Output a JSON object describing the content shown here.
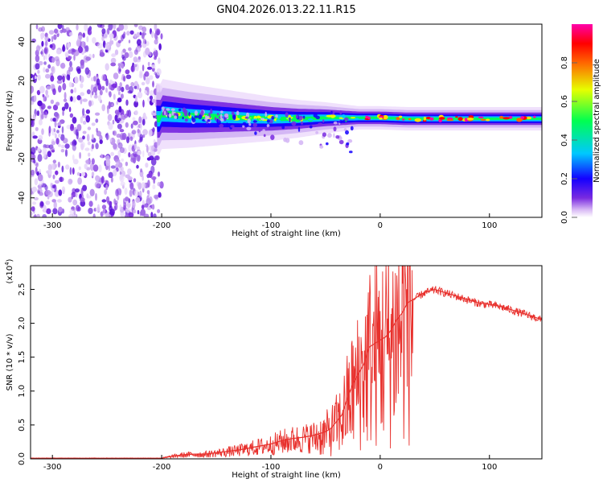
{
  "title": "GN04.2026.013.22.11.R15",
  "chart_data": [
    {
      "type": "heatmap",
      "xlabel": "Height of straight line (km)",
      "ylabel": "Frequency (Hz)",
      "xlim": [
        -320,
        148
      ],
      "ylim": [
        -50,
        49
      ],
      "xticks": [
        -300,
        -200,
        -100,
        0,
        100
      ],
      "yticks": [
        -40,
        -20,
        0,
        20,
        40
      ],
      "ridge": {
        "x": [
          -200,
          -175,
          -150,
          -125,
          -100,
          -75,
          -50,
          -25,
          0,
          25,
          50,
          75,
          100,
          148
        ],
        "y": [
          3,
          2,
          1.5,
          1,
          0.5,
          0.5,
          1,
          1,
          1,
          0.5,
          0.5,
          0.5,
          0.5,
          0.5
        ]
      },
      "noise_region_x": [
        -320,
        -200
      ],
      "colorbar": {
        "label": "Normalized spectral amplitude",
        "range": [
          0,
          1
        ],
        "ticks": [
          0.0,
          0.2,
          0.4,
          0.6,
          0.8
        ],
        "tick_labels": [
          "0.0",
          "0.2",
          "0.4",
          "0.6",
          "0.8"
        ],
        "colors": [
          "#ffffff",
          "#d8b8f5",
          "#7a2be0",
          "#1400ff",
          "#00c8ff",
          "#00ff50",
          "#e6ff00",
          "#ff6600",
          "#ff0000",
          "#ff00aa"
        ]
      }
    },
    {
      "type": "line",
      "xlabel": "Height of straight line (km)",
      "ylabel": "SNR (10 * v/v)",
      "y_multiplier": "(x10",
      "y_multiplier_exp": "4",
      "xlim": [
        -320,
        148
      ],
      "ylim": [
        0,
        2.85
      ],
      "xticks": [
        -300,
        -200,
        -100,
        0,
        100
      ],
      "yticks": [
        0.0,
        0.5,
        1.0,
        1.5,
        2.0,
        2.5
      ],
      "ytick_labels": [
        "0.0",
        "0.5",
        "1.0",
        "1.5",
        "2.0",
        "2.5"
      ],
      "color": "#e8312d",
      "series": [
        {
          "x": [
            -320,
            -300,
            -250,
            -200,
            -190,
            -180,
            -170,
            -160,
            -150,
            -140,
            -130,
            -120,
            -110,
            -100,
            -90,
            -80,
            -70,
            -60,
            -50,
            -45,
            -40,
            -35,
            -30,
            -25,
            -20,
            -15,
            -10,
            -5,
            0,
            5,
            10,
            15,
            20,
            25,
            30,
            40,
            50,
            60,
            70,
            80,
            90,
            100,
            110,
            120,
            130,
            140,
            148
          ],
          "y": [
            0.01,
            0.01,
            0.01,
            0.01,
            0.04,
            0.06,
            0.07,
            0.07,
            0.09,
            0.11,
            0.13,
            0.16,
            0.19,
            0.22,
            0.27,
            0.3,
            0.32,
            0.35,
            0.4,
            0.45,
            0.55,
            0.65,
            0.9,
            1.1,
            1.25,
            1.4,
            1.65,
            1.7,
            1.75,
            1.8,
            1.9,
            2.05,
            2.15,
            2.3,
            2.35,
            2.45,
            2.5,
            2.45,
            2.4,
            2.35,
            2.3,
            2.28,
            2.25,
            2.2,
            2.15,
            2.1,
            2.05
          ]
        }
      ]
    }
  ]
}
